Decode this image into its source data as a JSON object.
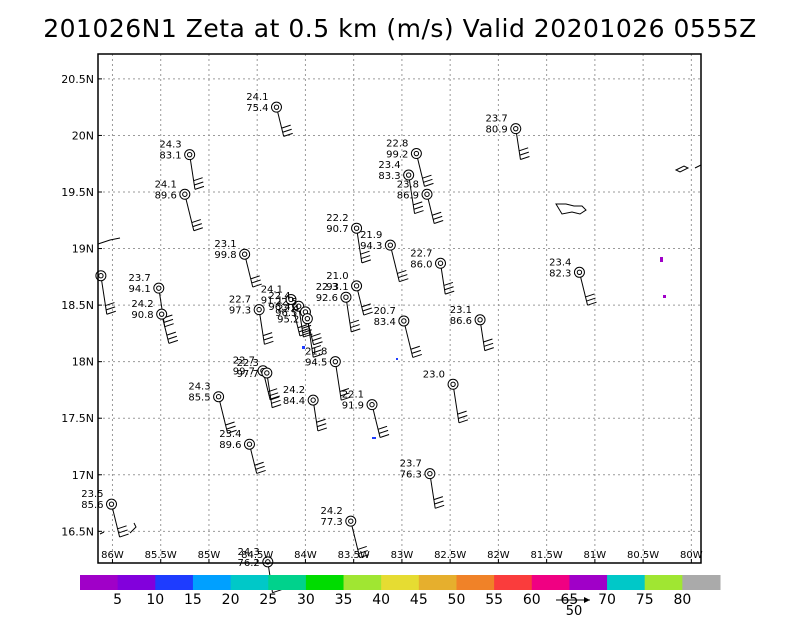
{
  "title": "201026N1 Zeta at 0.5 km (m/s) Valid 20201026 0555Z",
  "chart_data": {
    "type": "scatter",
    "title": "201026N1 Zeta at 0.5 km (m/s) Valid 20201026 0555Z",
    "x_ticks": [
      "86W",
      "85.5W",
      "85W",
      "84.5W",
      "84W",
      "83.5W",
      "83W",
      "82.5W",
      "82W",
      "81.5W",
      "81W",
      "80.5W",
      "80W"
    ],
    "y_ticks": [
      "16.5N",
      "17N",
      "17.5N",
      "18N",
      "18.5N",
      "19N",
      "19.5N",
      "20N",
      "20.5N"
    ],
    "x_tick_values": [
      -86,
      -85.5,
      -85,
      -84.5,
      -84,
      -83.5,
      -83,
      -82.5,
      -82,
      -81.5,
      -81,
      -80.5,
      -80
    ],
    "y_tick_values": [
      16.5,
      17,
      17.5,
      18,
      18.5,
      19,
      19.5,
      20,
      20.5
    ],
    "xlim": [
      -86.15,
      -79.9
    ],
    "ylim": [
      16.22,
      20.72
    ],
    "grid": true,
    "colorbar": {
      "labels": [
        "5",
        "10",
        "15",
        "20",
        "25",
        "30",
        "35",
        "40",
        "45",
        "50",
        "55",
        "60",
        "65",
        "70",
        "75",
        "80"
      ],
      "colors": [
        "#a000c8",
        "#8200dc",
        "#1e3cff",
        "#00a0ff",
        "#00c8c8",
        "#00d28c",
        "#00dc00",
        "#a0e632",
        "#e6dc32",
        "#e6af2d",
        "#f08228",
        "#fa3c3c",
        "#f00082",
        "#a000c8",
        "#00c8c8",
        "#a0e632",
        "#aaaaaa"
      ]
    },
    "reference_vector": {
      "label": "50"
    },
    "points": [
      {
        "lon": -84.3,
        "lat": 20.25,
        "t": "24.1",
        "v": "75.4"
      },
      {
        "lon": -85.2,
        "lat": 19.83,
        "t": "24.3",
        "v": "83.1"
      },
      {
        "lon": -85.25,
        "lat": 19.48,
        "t": "24.1",
        "v": "89.6"
      },
      {
        "lon": -81.82,
        "lat": 20.06,
        "t": "23.7",
        "v": "80.9"
      },
      {
        "lon": -82.85,
        "lat": 19.84,
        "t": "22.8",
        "v": "99.2"
      },
      {
        "lon": -82.93,
        "lat": 19.65,
        "t": "23.4",
        "v": "83.3"
      },
      {
        "lon": -82.74,
        "lat": 19.48,
        "t": "23.8",
        "v": "86.9"
      },
      {
        "lon": -83.47,
        "lat": 19.18,
        "t": "22.2",
        "v": "90.7"
      },
      {
        "lon": -83.12,
        "lat": 19.03,
        "t": "21.9",
        "v": "94.3"
      },
      {
        "lon": -82.6,
        "lat": 18.87,
        "t": "22.7",
        "v": "86.0"
      },
      {
        "lon": -84.63,
        "lat": 18.95,
        "t": "23.1",
        "v": "99.8"
      },
      {
        "lon": -85.52,
        "lat": 18.65,
        "t": "23.7",
        "v": "94.1"
      },
      {
        "lon": -85.49,
        "lat": 18.42,
        "t": "24.2",
        "v": "90.8"
      },
      {
        "lon": -84.48,
        "lat": 18.46,
        "t": "22.7",
        "v": "97.3"
      },
      {
        "lon": -84.15,
        "lat": 18.55,
        "t": "24.1",
        "v": "91.1"
      },
      {
        "lon": -84.07,
        "lat": 18.49,
        "t": "22.4",
        "v": "96.4"
      },
      {
        "lon": -84.0,
        "lat": 18.44,
        "t": "22.5",
        "v": "96.5"
      },
      {
        "lon": -83.98,
        "lat": 18.38,
        "t": "22.4",
        "v": "95.2"
      },
      {
        "lon": -83.47,
        "lat": 18.67,
        "t": "21.0",
        "v": "93.1"
      },
      {
        "lon": -83.58,
        "lat": 18.57,
        "t": "22.3",
        "v": "92.6"
      },
      {
        "lon": -82.98,
        "lat": 18.36,
        "t": "20.7",
        "v": "83.4"
      },
      {
        "lon": -82.19,
        "lat": 18.37,
        "t": "23.1",
        "v": "86.6"
      },
      {
        "lon": -81.16,
        "lat": 18.79,
        "t": "23.4",
        "v": "82.3"
      },
      {
        "lon": -83.69,
        "lat": 18.0,
        "t": "21.8",
        "v": "94.5"
      },
      {
        "lon": -84.44,
        "lat": 17.92,
        "t": "22.7",
        "v": "99.7"
      },
      {
        "lon": -84.4,
        "lat": 17.9,
        "t": "22.3",
        "v": "97.7"
      },
      {
        "lon": -84.9,
        "lat": 17.69,
        "t": "24.3",
        "v": "85.5"
      },
      {
        "lon": -83.92,
        "lat": 17.66,
        "t": "24.2",
        "v": "84.4"
      },
      {
        "lon": -83.31,
        "lat": 17.62,
        "t": "22.1",
        "v": "91.9"
      },
      {
        "lon": -82.47,
        "lat": 17.8,
        "t": "23.0",
        "v": ""
      },
      {
        "lon": -84.58,
        "lat": 17.27,
        "t": "23.4",
        "v": "89.6"
      },
      {
        "lon": -82.71,
        "lat": 17.01,
        "t": "23.7",
        "v": "76.3"
      },
      {
        "lon": -83.53,
        "lat": 16.59,
        "t": "24.2",
        "v": "77.3"
      },
      {
        "lon": -84.39,
        "lat": 16.23,
        "t": "24.3",
        "v": "76.2"
      },
      {
        "lon": -86.01,
        "lat": 16.74,
        "t": "23.5",
        "v": "85.6"
      },
      {
        "lon": -86.12,
        "lat": 18.76,
        "t": "",
        "v": ""
      }
    ]
  }
}
